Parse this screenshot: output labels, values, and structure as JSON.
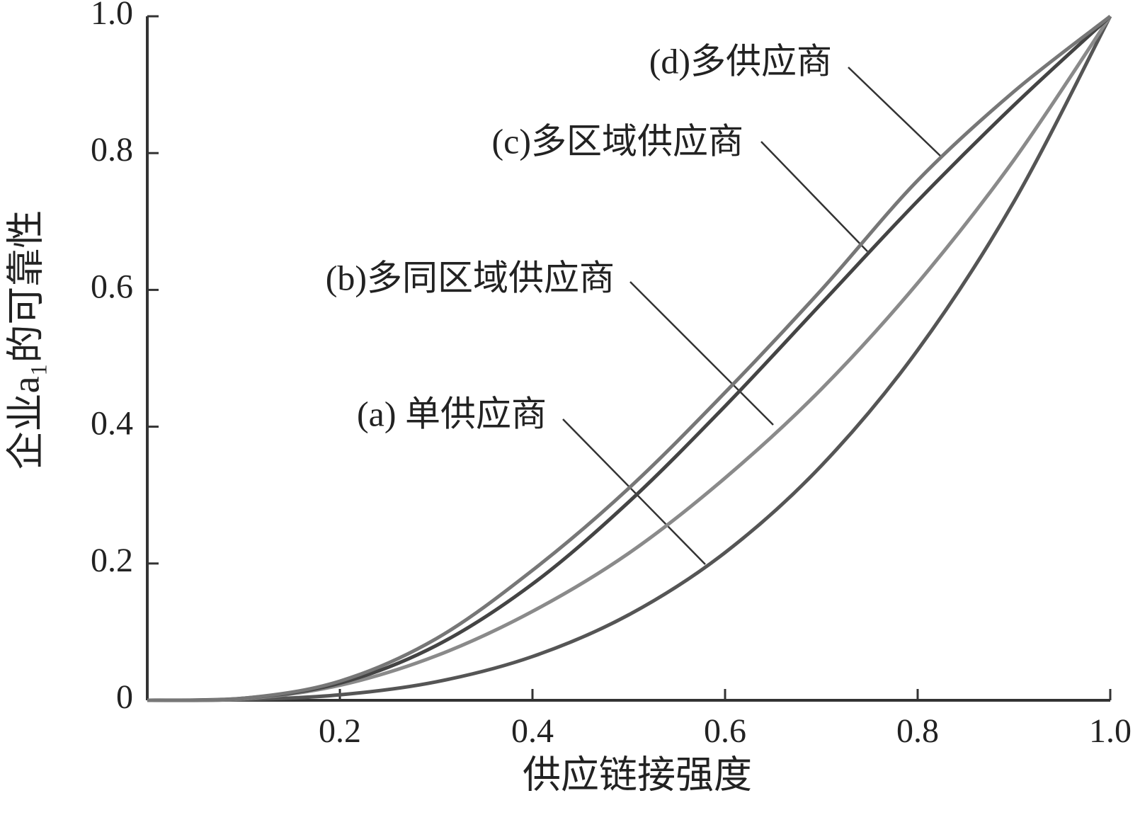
{
  "chart_data": {
    "type": "line",
    "xlabel": "供应链接强度",
    "ylabel": "企业a₁的可靠性",
    "x": [
      0,
      0.1,
      0.2,
      0.3,
      0.4,
      0.5,
      0.6,
      0.7,
      0.8,
      0.9,
      1.0
    ],
    "series": [
      {
        "name": "(a) 单供应商",
        "color": "#555555",
        "values": [
          0,
          0.001,
          0.008,
          0.027,
          0.064,
          0.125,
          0.216,
          0.343,
          0.512,
          0.729,
          1
        ]
      },
      {
        "name": "(b)多同区域供应商",
        "color": "#8a8a8a",
        "values": [
          0,
          0.002,
          0.022,
          0.065,
          0.13,
          0.215,
          0.325,
          0.455,
          0.61,
          0.79,
          1
        ]
      },
      {
        "name": "(c)多区域供应商",
        "color": "#444444",
        "values": [
          0,
          0.003,
          0.025,
          0.08,
          0.17,
          0.29,
          0.43,
          0.58,
          0.73,
          0.87,
          1
        ]
      },
      {
        "name": "(d)多供应商",
        "color": "#777777",
        "values": [
          0,
          0.003,
          0.028,
          0.09,
          0.19,
          0.31,
          0.45,
          0.6,
          0.76,
          0.89,
          1
        ]
      }
    ],
    "xlim": [
      0,
      1
    ],
    "ylim": [
      0,
      1
    ],
    "xticks": [
      0.2,
      0.4,
      0.6,
      0.8,
      {
        "value": 1,
        "label": "1.0"
      }
    ],
    "yticks": [
      0,
      0.2,
      0.4,
      0.6,
      0.8,
      {
        "value": 1,
        "label": "1.0"
      }
    ]
  }
}
